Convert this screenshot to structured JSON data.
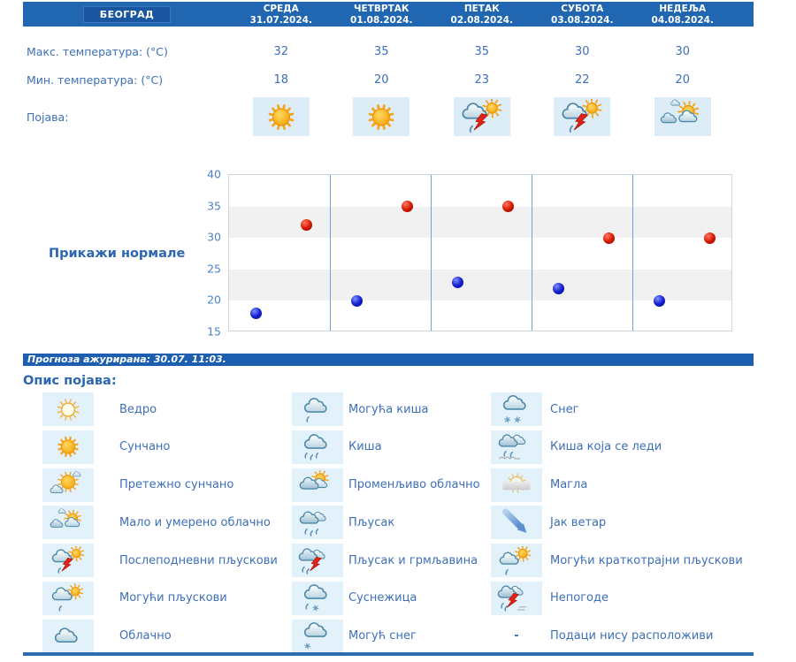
{
  "colors": {
    "header_bg": "#2066b0",
    "text_blue": "#3d6fb7",
    "title_blue": "#2d67b3",
    "tick_blue": "#4d82c4",
    "max_dot_red": "#cc1100",
    "min_dot_blue": "#1122cc",
    "icon_cell_bg": "#dcedf8",
    "band_gray": "#f1f1f1",
    "separator_blue": "#6ea2d8"
  },
  "forecast_table": {
    "location": "БЕОГРАД",
    "max_label": "Макс. температура: (°C)",
    "min_label": "Мин. температура: (°C)",
    "appearance_label": "Појава:",
    "days": [
      {
        "name": "СРЕДА",
        "date": "31.07.2024.",
        "max": "32",
        "min": "18",
        "icon": "sunny"
      },
      {
        "name": "ЧЕТВРТАК",
        "date": "01.08.2024.",
        "max": "35",
        "min": "20",
        "icon": "sunny"
      },
      {
        "name": "ПЕТАК",
        "date": "02.08.2024.",
        "max": "35",
        "min": "23",
        "icon": "afternoon-showers"
      },
      {
        "name": "СУБОТА",
        "date": "03.08.2024.",
        "max": "30",
        "min": "22",
        "icon": "afternoon-showers"
      },
      {
        "name": "НЕДЕЉА",
        "date": "04.08.2024.",
        "max": "30",
        "min": "20",
        "icon": "partly-cloudy"
      }
    ]
  },
  "normals_button": "Прикажи нормале",
  "updated_text": "Прогноза ажурирана:  30.07. 11:03.",
  "legend_title": "Опис појава:",
  "legend_columns": [
    [
      {
        "icon": "clear",
        "label": "Ведро"
      },
      {
        "icon": "sunny",
        "label": "Сунчано"
      },
      {
        "icon": "mostly-sunny",
        "label": "Претежно сунчано"
      },
      {
        "icon": "partly-cloudy",
        "label": "Мало и умерено облачно"
      },
      {
        "icon": "afternoon-showers",
        "label": "Послеподневни пљускови"
      },
      {
        "icon": "possible-showers",
        "label": "Могући пљускови"
      },
      {
        "icon": "cloudy",
        "label": "Облачно"
      }
    ],
    [
      {
        "icon": "possible-rain",
        "label": "Могућа киша"
      },
      {
        "icon": "rain",
        "label": "Киша"
      },
      {
        "icon": "variable-cloudy",
        "label": "Променљиво облачно"
      },
      {
        "icon": "shower",
        "label": "Пљусак"
      },
      {
        "icon": "shower-thunder",
        "label": "Пљусак и грмљавина"
      },
      {
        "icon": "sleet",
        "label": "Суснежица"
      },
      {
        "icon": "possible-snow",
        "label": "Могућ снег"
      }
    ],
    [
      {
        "icon": "snow",
        "label": "Снег"
      },
      {
        "icon": "freezing-rain",
        "label": "Киша која се леди"
      },
      {
        "icon": "fog",
        "label": "Магла"
      },
      {
        "icon": "strong-wind",
        "label": "Јак ветар"
      },
      {
        "icon": "short-showers",
        "label": "Могући краткотрајни пљускови"
      },
      {
        "icon": "storms",
        "label": "Непогоде"
      },
      {
        "icon": "none",
        "label": "Подаци нису расположиви"
      }
    ]
  ],
  "chart_data": {
    "type": "scatter",
    "categories": [
      "СРЕДА",
      "ЧЕТВРТАК",
      "ПЕТАК",
      "СУБОТА",
      "НЕДЕЉА"
    ],
    "series": [
      {
        "name": "Макс. температура: (°C)",
        "color": "#cc1100",
        "values": [
          32,
          35,
          35,
          30,
          30
        ]
      },
      {
        "name": "Мин. температура: (°C)",
        "color": "#1122cc",
        "values": [
          18,
          20,
          23,
          22,
          20
        ]
      }
    ],
    "ylim": [
      15,
      40
    ],
    "yticks": [
      15,
      20,
      25,
      30,
      35,
      40
    ],
    "grid": "alternating horizontal gray bands (20-25, 30-35), blue vertical day separators",
    "legend_position": "none"
  }
}
